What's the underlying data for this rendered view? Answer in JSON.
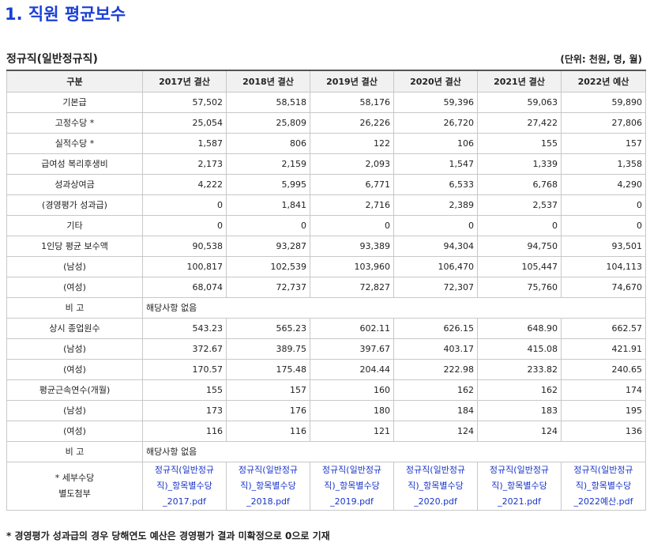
{
  "title": "1. 직원 평균보수",
  "subtitle": "정규직(일반정규직)",
  "unit": "(단위: 천원, 명, 월)",
  "headers": [
    "구분",
    "2017년 결산",
    "2018년 결산",
    "2019년 결산",
    "2020년 결산",
    "2021년 결산",
    "2022년 예산"
  ],
  "rows": [
    {
      "label": "기본급",
      "values": [
        "57,502",
        "58,518",
        "58,176",
        "59,396",
        "59,063",
        "59,890"
      ]
    },
    {
      "label": "고정수당 *",
      "values": [
        "25,054",
        "25,809",
        "26,226",
        "26,720",
        "27,422",
        "27,806"
      ]
    },
    {
      "label": "실적수당 *",
      "values": [
        "1,587",
        "806",
        "122",
        "106",
        "155",
        "157"
      ]
    },
    {
      "label": "급여성 복리후생비",
      "values": [
        "2,173",
        "2,159",
        "2,093",
        "1,547",
        "1,339",
        "1,358"
      ]
    },
    {
      "label": "성과상여금",
      "values": [
        "4,222",
        "5,995",
        "6,771",
        "6,533",
        "6,768",
        "4,290"
      ]
    },
    {
      "label": "(경영평가 성과급)",
      "values": [
        "0",
        "1,841",
        "2,716",
        "2,389",
        "2,537",
        "0"
      ]
    },
    {
      "label": "기타",
      "values": [
        "0",
        "0",
        "0",
        "0",
        "0",
        "0"
      ]
    },
    {
      "label": "1인당 평균 보수액",
      "values": [
        "90,538",
        "93,287",
        "93,389",
        "94,304",
        "94,750",
        "93,501"
      ]
    },
    {
      "label": "(남성)",
      "values": [
        "100,817",
        "102,539",
        "103,960",
        "106,470",
        "105,447",
        "104,113"
      ]
    },
    {
      "label": "(여성)",
      "values": [
        "68,074",
        "72,737",
        "72,827",
        "72,307",
        "75,760",
        "74,670"
      ]
    },
    {
      "label": "비 고",
      "note": "해당사항 없음"
    },
    {
      "label": "상시 종업원수",
      "values": [
        "543.23",
        "565.23",
        "602.11",
        "626.15",
        "648.90",
        "662.57"
      ]
    },
    {
      "label": "(남성)",
      "values": [
        "372.67",
        "389.75",
        "397.67",
        "403.17",
        "415.08",
        "421.91"
      ]
    },
    {
      "label": "(여성)",
      "values": [
        "170.57",
        "175.48",
        "204.44",
        "222.98",
        "233.82",
        "240.65"
      ]
    },
    {
      "label": "평균근속연수(개월)",
      "values": [
        "155",
        "157",
        "160",
        "162",
        "162",
        "174"
      ]
    },
    {
      "label": "(남성)",
      "values": [
        "173",
        "176",
        "180",
        "184",
        "183",
        "195"
      ]
    },
    {
      "label": "(여성)",
      "values": [
        "116",
        "116",
        "121",
        "124",
        "124",
        "136"
      ]
    },
    {
      "label": "비 고",
      "note": "해당사항 없음"
    }
  ],
  "attachments": {
    "label_line1": "* 세부수당",
    "label_line2": "별도첨부",
    "links": [
      [
        "정규직(일반정규",
        "직)_항목별수당",
        "_2017.pdf"
      ],
      [
        "정규직(일반정규",
        "직)_항목별수당",
        "_2018.pdf"
      ],
      [
        "정규직(일반정규",
        "직)_항목별수당",
        "_2019.pdf"
      ],
      [
        "정규직(일반정규",
        "직)_항목별수당",
        "_2020.pdf"
      ],
      [
        "정규직(일반정규",
        "직)_항목별수당",
        "_2021.pdf"
      ],
      [
        "정규직(일반정규",
        "직)_항목별수당",
        "_2022예산.pdf"
      ]
    ]
  },
  "footnote": "* 경영평가 성과급의 경우 당해연도 예산은 경영평가 결과 미확정으로 0으로 기재"
}
